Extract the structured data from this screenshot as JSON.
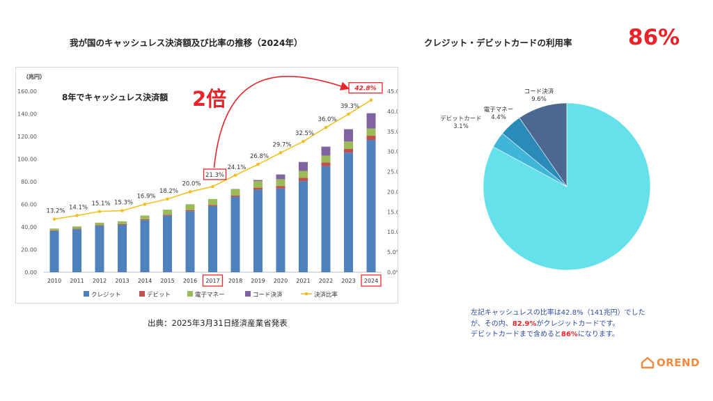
{
  "left_title": "我が国のキャッシュレス決済額及び比率の推移（2024年）",
  "right_title": "クレジット・デビットカードの利用率",
  "big_percent": "86%",
  "source_text": "出典：2025年3月31日経済産業省発表",
  "note": {
    "line1": "左記キャッシュレスの比率は42.8%（141兆円）でした",
    "line2_pre": "が、その内、",
    "line2_hl": "82.9%",
    "line2_post": "がクレジットカードです。",
    "line3_pre": "デビットカードまで含めると",
    "line3_hl": "86%",
    "line3_post": "になります。"
  },
  "logo_text": "OREND",
  "colors": {
    "accent_red": "#e8242a",
    "credit": "#4f81bd",
    "debit": "#c0504d",
    "emoney": "#9bbb59",
    "code": "#8064a2",
    "ratio": "#f2c020",
    "pie_credit": "#64e1ea",
    "pie_debit": "#3fb6d8",
    "pie_emoney": "#2a8ab8",
    "pie_code": "#4a6892"
  },
  "chart_data": [
    {
      "type": "bar",
      "stacked": true,
      "unit_label": "（兆円）",
      "categories": [
        "2010",
        "2011",
        "2012",
        "2013",
        "2014",
        "2015",
        "2016",
        "2017",
        "2018",
        "2019",
        "2020",
        "2021",
        "2022",
        "2023",
        "2024"
      ],
      "series": [
        {
          "name": "クレジット",
          "values": [
            36.5,
            38.0,
            41.0,
            41.8,
            46.0,
            50.0,
            54.0,
            58.5,
            66.7,
            73.0,
            74.0,
            80.5,
            93.8,
            105.7,
            116.9
          ]
        },
        {
          "name": "デビット",
          "values": [
            0.5,
            0.6,
            0.6,
            0.7,
            0.8,
            0.9,
            1.0,
            1.0,
            1.2,
            1.7,
            2.2,
            3.0,
            3.2,
            3.4,
            3.7
          ]
        },
        {
          "name": "電子マネー",
          "values": [
            1.6,
            1.9,
            2.2,
            2.5,
            3.3,
            4.4,
            5.1,
            5.2,
            5.5,
            5.8,
            6.0,
            6.0,
            6.1,
            6.4,
            6.4
          ]
        },
        {
          "name": "コード決済",
          "values": [
            0,
            0,
            0,
            0,
            0,
            0,
            0,
            0,
            0.2,
            1.0,
            4.2,
            7.9,
            7.9,
            10.9,
            13.5
          ]
        }
      ],
      "line_series": {
        "name": "決済比率",
        "values": [
          13.2,
          14.1,
          15.1,
          15.3,
          16.9,
          18.2,
          20.0,
          21.3,
          24.1,
          26.8,
          29.7,
          32.5,
          36.0,
          39.3,
          42.8
        ],
        "labels": [
          "13.2%",
          "14.1%",
          "15.1%",
          "15.3%",
          "16.9%",
          "18.2%",
          "20.0%",
          "21.3%",
          "24.1%",
          "26.8%",
          "29.7%",
          "32.5%",
          "36.0%",
          "39.3%",
          "42.8%"
        ]
      },
      "y_left": {
        "min": 0,
        "max": 160,
        "ticks": [
          "0.00",
          "20.00",
          "40.00",
          "60.00",
          "80.00",
          "100.00",
          "120.00",
          "140.00",
          "160.00"
        ]
      },
      "y_right": {
        "min": 0,
        "max": 45,
        "ticks": [
          "0.0%",
          "5.0%",
          "10.0%",
          "15.0%",
          "20.0%",
          "25.0%",
          "30.0%",
          "35.0%",
          "40.0%",
          "45.0%"
        ]
      },
      "legend": [
        "クレジット",
        "デビット",
        "電子マネー",
        "コード決済",
        "決済比率"
      ],
      "annotation_text": "8年でキャッシュレス決済額",
      "annotation_big": "2倍",
      "highlight_years": [
        "2017",
        "2024"
      ],
      "highlight_values": [
        "21.3%",
        "42.8%"
      ]
    },
    {
      "type": "pie",
      "slices": [
        {
          "name": "クレジットカード",
          "value": 82.9,
          "label": "82.9%"
        },
        {
          "name": "デビットカード",
          "value": 3.1,
          "label": "3.1%"
        },
        {
          "name": "電子マネー",
          "value": 4.4,
          "label": "4.4%"
        },
        {
          "name": "コード決済",
          "value": 9.6,
          "label": "9.6%"
        }
      ]
    }
  ]
}
